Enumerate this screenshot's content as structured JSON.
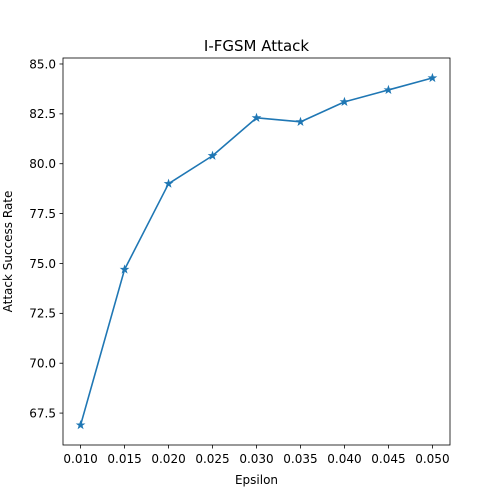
{
  "chart_data": {
    "type": "line",
    "title": "I-FGSM Attack",
    "xlabel": "Epsilon",
    "ylabel": "Attack Success Rate",
    "x": [
      0.01,
      0.015,
      0.02,
      0.025,
      0.03,
      0.035,
      0.04,
      0.045,
      0.05
    ],
    "x_tick_labels": [
      "0.010",
      "0.015",
      "0.020",
      "0.025",
      "0.030",
      "0.035",
      "0.040",
      "0.045",
      "0.050"
    ],
    "y_ticks": [
      67.5,
      70.0,
      72.5,
      75.0,
      77.5,
      80.0,
      82.5,
      85.0
    ],
    "y_tick_labels": [
      "67.5",
      "70.0",
      "72.5",
      "75.0",
      "77.5",
      "80.0",
      "82.5",
      "85.0"
    ],
    "series": [
      {
        "values": [
          66.9,
          74.7,
          79.0,
          80.4,
          82.3,
          82.1,
          83.1,
          83.7,
          84.3
        ],
        "color": "#1f77b4",
        "marker": "star"
      }
    ],
    "xlim": [
      0.008,
      0.052
    ],
    "ylim": [
      65.9,
      85.3
    ],
    "grid": false,
    "legend": "none"
  }
}
